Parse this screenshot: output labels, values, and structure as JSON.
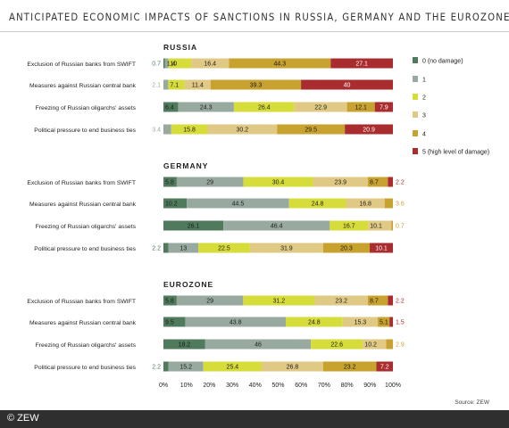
{
  "title": "ANTICIPATED ECONOMIC IMPACTS OF SANCTIONS IN RUSSIA, GERMANY AND THE EUROZONE",
  "source": "Source: ZEW",
  "copyright": "© ZEW",
  "colors": [
    "#4f7a5c",
    "#98aaa0",
    "#d6dc3a",
    "#e0c984",
    "#c8a22e",
    "#a92d2e"
  ],
  "chart_data": {
    "type": "bar",
    "stacked": true,
    "orientation": "horizontal",
    "x_ticks": [
      "0%",
      "10%",
      "20%",
      "30%",
      "40%",
      "50%",
      "60%",
      "70%",
      "80%",
      "90%",
      "100%"
    ],
    "xlim": [
      0,
      100
    ],
    "legend_position": "right",
    "series_names": [
      "0 (no damage)",
      "1",
      "2",
      "3",
      "4",
      "5 (high level of damage)"
    ],
    "panels": [
      {
        "title": "RUSSIA",
        "categories": [
          "Exclusion of Russian banks from SWIFT",
          "Measures against Russian central bank",
          "Freezing of Russian oligarchs' assets",
          "Political pressure to end business ties"
        ],
        "rows": [
          [
            0.7,
            1.4,
            10,
            16.4,
            44.3,
            27.1
          ],
          [
            0,
            2.1,
            7.1,
            11.4,
            39.3,
            40
          ],
          [
            6.4,
            24.3,
            26.4,
            22.9,
            12.1,
            7.9
          ],
          [
            0,
            3.4,
            15.8,
            30.2,
            29.5,
            20.9
          ]
        ]
      },
      {
        "title": "GERMANY",
        "categories": [
          "Exclusion of Russian banks from SWIFT",
          "Measures against Russian central bank",
          "Freezing of Russian oligarchs' assets",
          "Political pressure to end business ties"
        ],
        "rows": [
          [
            5.8,
            29,
            30.4,
            23.9,
            8.7,
            2.2
          ],
          [
            10.2,
            44.5,
            24.8,
            16.8,
            3.6,
            0
          ],
          [
            26.1,
            46.4,
            16.7,
            10.1,
            0.7,
            0
          ],
          [
            2.2,
            13,
            22.5,
            31.9,
            20.3,
            10.1
          ]
        ]
      },
      {
        "title": "EUROZONE",
        "categories": [
          "Exclusion of Russian banks from SWIFT",
          "Measures against Russian central bank",
          "Freezing of Russian oligarchs' assets",
          "Political pressure to end business ties"
        ],
        "rows": [
          [
            5.8,
            29,
            31.2,
            23.2,
            8.7,
            2.2
          ],
          [
            9.5,
            43.8,
            24.8,
            15.3,
            5.1,
            1.5
          ],
          [
            18.2,
            46,
            22.6,
            10.2,
            2.9,
            0
          ],
          [
            2.2,
            15.2,
            25.4,
            26.8,
            23.2,
            7.2
          ]
        ]
      }
    ]
  }
}
